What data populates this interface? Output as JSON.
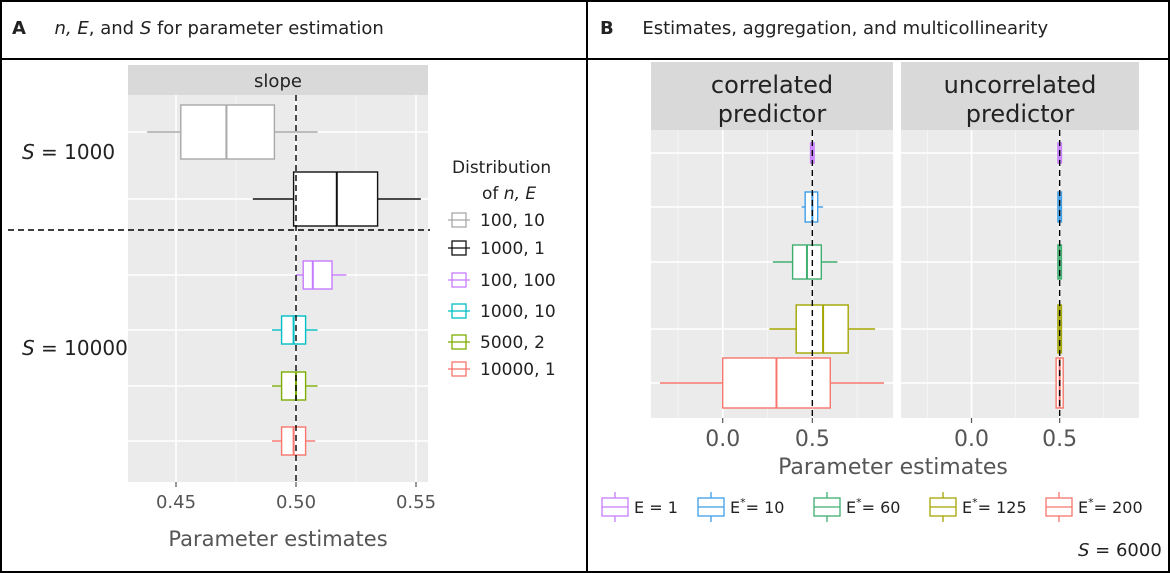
{
  "panelA": {
    "letter": "A",
    "title_italic_1": "n, E",
    "title_mid": ", and ",
    "title_italic_2": "S",
    "title_rest": " for parameter estimation",
    "group1_italic": "S",
    "group1_rest": " = 1000",
    "group2_italic": "S",
    "group2_rest": " = 10000",
    "legend_title_1": "Distribution",
    "legend_title_2a": "of ",
    "legend_title_2b": "n, E"
  },
  "panelB": {
    "letter": "B",
    "title": "Estimates, aggregation, and multicollinearity",
    "footer_italic": "S",
    "footer_rest": " = 6000"
  },
  "colors": {
    "gray": "#a9a9a9",
    "black": "#111111",
    "purple": "#c77cff",
    "cyan": "#00bfc4",
    "olive": "#7cae00",
    "salmon": "#f8766d",
    "blue": "#3d9ee8",
    "green": "#3fae6f",
    "mustard": "#a3a500"
  },
  "chart_data": [
    {
      "type": "boxplot",
      "orientation": "horizontal",
      "facet": "slope",
      "xlabel": "Parameter estimates",
      "xlim": [
        0.43,
        0.555
      ],
      "xticks": [
        0.45,
        0.5,
        0.55
      ],
      "xtick_labels": [
        "0.45",
        "0.50",
        "0.55"
      ],
      "reference_line": 0.5,
      "legend_title": "Distribution of n, E",
      "series": [
        {
          "name": "100, 10",
          "group": "S = 1000",
          "color": "#a9a9a9",
          "whisker_low": 0.438,
          "q1": 0.452,
          "median": 0.471,
          "q3": 0.491,
          "whisker_high": 0.509
        },
        {
          "name": "1000, 1",
          "group": "S = 1000",
          "color": "#111111",
          "whisker_low": 0.482,
          "q1": 0.499,
          "median": 0.517,
          "q3": 0.534,
          "whisker_high": 0.552
        },
        {
          "name": "100, 100",
          "group": "S = 10000",
          "color": "#c77cff",
          "whisker_low": 0.5,
          "q1": 0.503,
          "median": 0.507,
          "q3": 0.515,
          "whisker_high": 0.521
        },
        {
          "name": "1000, 10",
          "group": "S = 10000",
          "color": "#00bfc4",
          "whisker_low": 0.49,
          "q1": 0.494,
          "median": 0.499,
          "q3": 0.504,
          "whisker_high": 0.509
        },
        {
          "name": "5000, 2",
          "group": "S = 10000",
          "color": "#7cae00",
          "whisker_low": 0.49,
          "q1": 0.494,
          "median": 0.5,
          "q3": 0.504,
          "whisker_high": 0.509
        },
        {
          "name": "10000, 1",
          "group": "S = 10000",
          "color": "#f8766d",
          "whisker_low": 0.49,
          "q1": 0.494,
          "median": 0.499,
          "q3": 0.504,
          "whisker_high": 0.508
        }
      ]
    },
    {
      "type": "boxplot",
      "orientation": "horizontal",
      "facets": [
        "correlated predictor",
        "uncorrelated predictor"
      ],
      "facet_label_lines": [
        [
          "correlated",
          "predictor"
        ],
        [
          "uncorrelated",
          "predictor"
        ]
      ],
      "xlabel": "Parameter estimates",
      "xlim": [
        -0.4,
        0.95
      ],
      "xticks": [
        0.0,
        0.5
      ],
      "xtick_labels": [
        "0.0",
        "0.5"
      ],
      "reference_line": 0.5,
      "series": [
        {
          "name": "E = 1",
          "legend_base": "E",
          "legend_sup": "",
          "legend_rest": " = 1",
          "color": "#c77cff",
          "correlated": {
            "whisker_low": 0.49,
            "q1": 0.49,
            "median": 0.5,
            "q3": 0.51,
            "whisker_high": 0.51
          },
          "uncorrelated": {
            "whisker_low": 0.49,
            "q1": 0.49,
            "median": 0.5,
            "q3": 0.51,
            "whisker_high": 0.51
          }
        },
        {
          "name": "E*= 10",
          "legend_base": "E",
          "legend_sup": "*",
          "legend_rest": "= 10",
          "color": "#3d9ee8",
          "correlated": {
            "whisker_low": 0.44,
            "q1": 0.46,
            "median": 0.5,
            "q3": 0.53,
            "whisker_high": 0.56
          },
          "uncorrelated": {
            "whisker_low": 0.49,
            "q1": 0.49,
            "median": 0.5,
            "q3": 0.51,
            "whisker_high": 0.51
          }
        },
        {
          "name": "E*= 60",
          "legend_base": "E",
          "legend_sup": "*",
          "legend_rest": "= 60",
          "color": "#3fae6f",
          "correlated": {
            "whisker_low": 0.28,
            "q1": 0.39,
            "median": 0.47,
            "q3": 0.55,
            "whisker_high": 0.64
          },
          "uncorrelated": {
            "whisker_low": 0.49,
            "q1": 0.49,
            "median": 0.5,
            "q3": 0.51,
            "whisker_high": 0.51
          }
        },
        {
          "name": "E*= 125",
          "legend_base": "E",
          "legend_sup": "*",
          "legend_rest": "= 125",
          "color": "#a3a500",
          "correlated": {
            "whisker_low": 0.26,
            "q1": 0.41,
            "median": 0.56,
            "q3": 0.7,
            "whisker_high": 0.85
          },
          "uncorrelated": {
            "whisker_low": 0.49,
            "q1": 0.49,
            "median": 0.5,
            "q3": 0.51,
            "whisker_high": 0.51
          }
        },
        {
          "name": "E*= 200",
          "legend_base": "E",
          "legend_sup": "*",
          "legend_rest": "= 200",
          "color": "#f8766d",
          "correlated": {
            "whisker_low": -0.35,
            "q1": 0.0,
            "median": 0.3,
            "q3": 0.6,
            "whisker_high": 0.9
          },
          "uncorrelated": {
            "whisker_low": 0.48,
            "q1": 0.48,
            "median": 0.5,
            "q3": 0.52,
            "whisker_high": 0.52
          }
        }
      ]
    }
  ]
}
